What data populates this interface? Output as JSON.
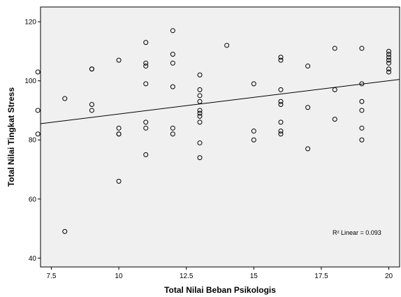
{
  "chart_data": {
    "type": "scatter",
    "xlabel": "Total Nilai Beban Psikologis",
    "ylabel": "Total Nilai Tingkat Stress",
    "xlim": [
      7.1,
      20.4
    ],
    "ylim": [
      37,
      125
    ],
    "x_ticks": [
      7.5,
      10,
      12.5,
      15,
      17.5,
      20
    ],
    "x_tick_labels": [
      "7.5",
      "10",
      "12.5",
      "15",
      "17.5",
      "20"
    ],
    "y_ticks": [
      40,
      60,
      80,
      100,
      120
    ],
    "y_tick_labels": [
      "40",
      "60",
      "80",
      "100",
      "120"
    ],
    "grid": false,
    "marker": "open-circle",
    "plot_background": "#f0f0f0",
    "points": [
      {
        "x": 7,
        "y": 103
      },
      {
        "x": 7,
        "y": 90
      },
      {
        "x": 7,
        "y": 82
      },
      {
        "x": 8,
        "y": 94
      },
      {
        "x": 8,
        "y": 49
      },
      {
        "x": 9,
        "y": 104
      },
      {
        "x": 9,
        "y": 104
      },
      {
        "x": 9,
        "y": 92
      },
      {
        "x": 9,
        "y": 90
      },
      {
        "x": 10,
        "y": 107
      },
      {
        "x": 10,
        "y": 84
      },
      {
        "x": 10,
        "y": 82
      },
      {
        "x": 10,
        "y": 82
      },
      {
        "x": 10,
        "y": 66
      },
      {
        "x": 11,
        "y": 113
      },
      {
        "x": 11,
        "y": 106
      },
      {
        "x": 11,
        "y": 105
      },
      {
        "x": 11,
        "y": 99
      },
      {
        "x": 11,
        "y": 86
      },
      {
        "x": 11,
        "y": 84
      },
      {
        "x": 11,
        "y": 75
      },
      {
        "x": 12,
        "y": 117
      },
      {
        "x": 12,
        "y": 109
      },
      {
        "x": 12,
        "y": 106
      },
      {
        "x": 12,
        "y": 98
      },
      {
        "x": 12,
        "y": 84
      },
      {
        "x": 12,
        "y": 82
      },
      {
        "x": 13,
        "y": 102
      },
      {
        "x": 13,
        "y": 97
      },
      {
        "x": 13,
        "y": 95
      },
      {
        "x": 13,
        "y": 93
      },
      {
        "x": 13,
        "y": 90
      },
      {
        "x": 13,
        "y": 89
      },
      {
        "x": 13,
        "y": 88
      },
      {
        "x": 13,
        "y": 86
      },
      {
        "x": 13,
        "y": 79
      },
      {
        "x": 13,
        "y": 74
      },
      {
        "x": 14,
        "y": 112
      },
      {
        "x": 15,
        "y": 99
      },
      {
        "x": 15,
        "y": 83
      },
      {
        "x": 15,
        "y": 80
      },
      {
        "x": 16,
        "y": 108
      },
      {
        "x": 16,
        "y": 107
      },
      {
        "x": 16,
        "y": 97
      },
      {
        "x": 16,
        "y": 93
      },
      {
        "x": 16,
        "y": 92
      },
      {
        "x": 16,
        "y": 86
      },
      {
        "x": 16,
        "y": 83
      },
      {
        "x": 16,
        "y": 82
      },
      {
        "x": 17,
        "y": 105
      },
      {
        "x": 17,
        "y": 91
      },
      {
        "x": 17,
        "y": 77
      },
      {
        "x": 18,
        "y": 111
      },
      {
        "x": 18,
        "y": 97
      },
      {
        "x": 18,
        "y": 87
      },
      {
        "x": 19,
        "y": 111
      },
      {
        "x": 19,
        "y": 99
      },
      {
        "x": 19,
        "y": 93
      },
      {
        "x": 19,
        "y": 90
      },
      {
        "x": 19,
        "y": 84
      },
      {
        "x": 19,
        "y": 80
      },
      {
        "x": 20,
        "y": 110
      },
      {
        "x": 20,
        "y": 109
      },
      {
        "x": 20,
        "y": 108
      },
      {
        "x": 20,
        "y": 107
      },
      {
        "x": 20,
        "y": 106
      },
      {
        "x": 20,
        "y": 104
      },
      {
        "x": 20,
        "y": 103
      }
    ],
    "fit_line": {
      "x1": 7.1,
      "y1": 85.5,
      "x2": 20.4,
      "y2": 100.5
    },
    "annotation": "R² Linear = 0.093"
  }
}
